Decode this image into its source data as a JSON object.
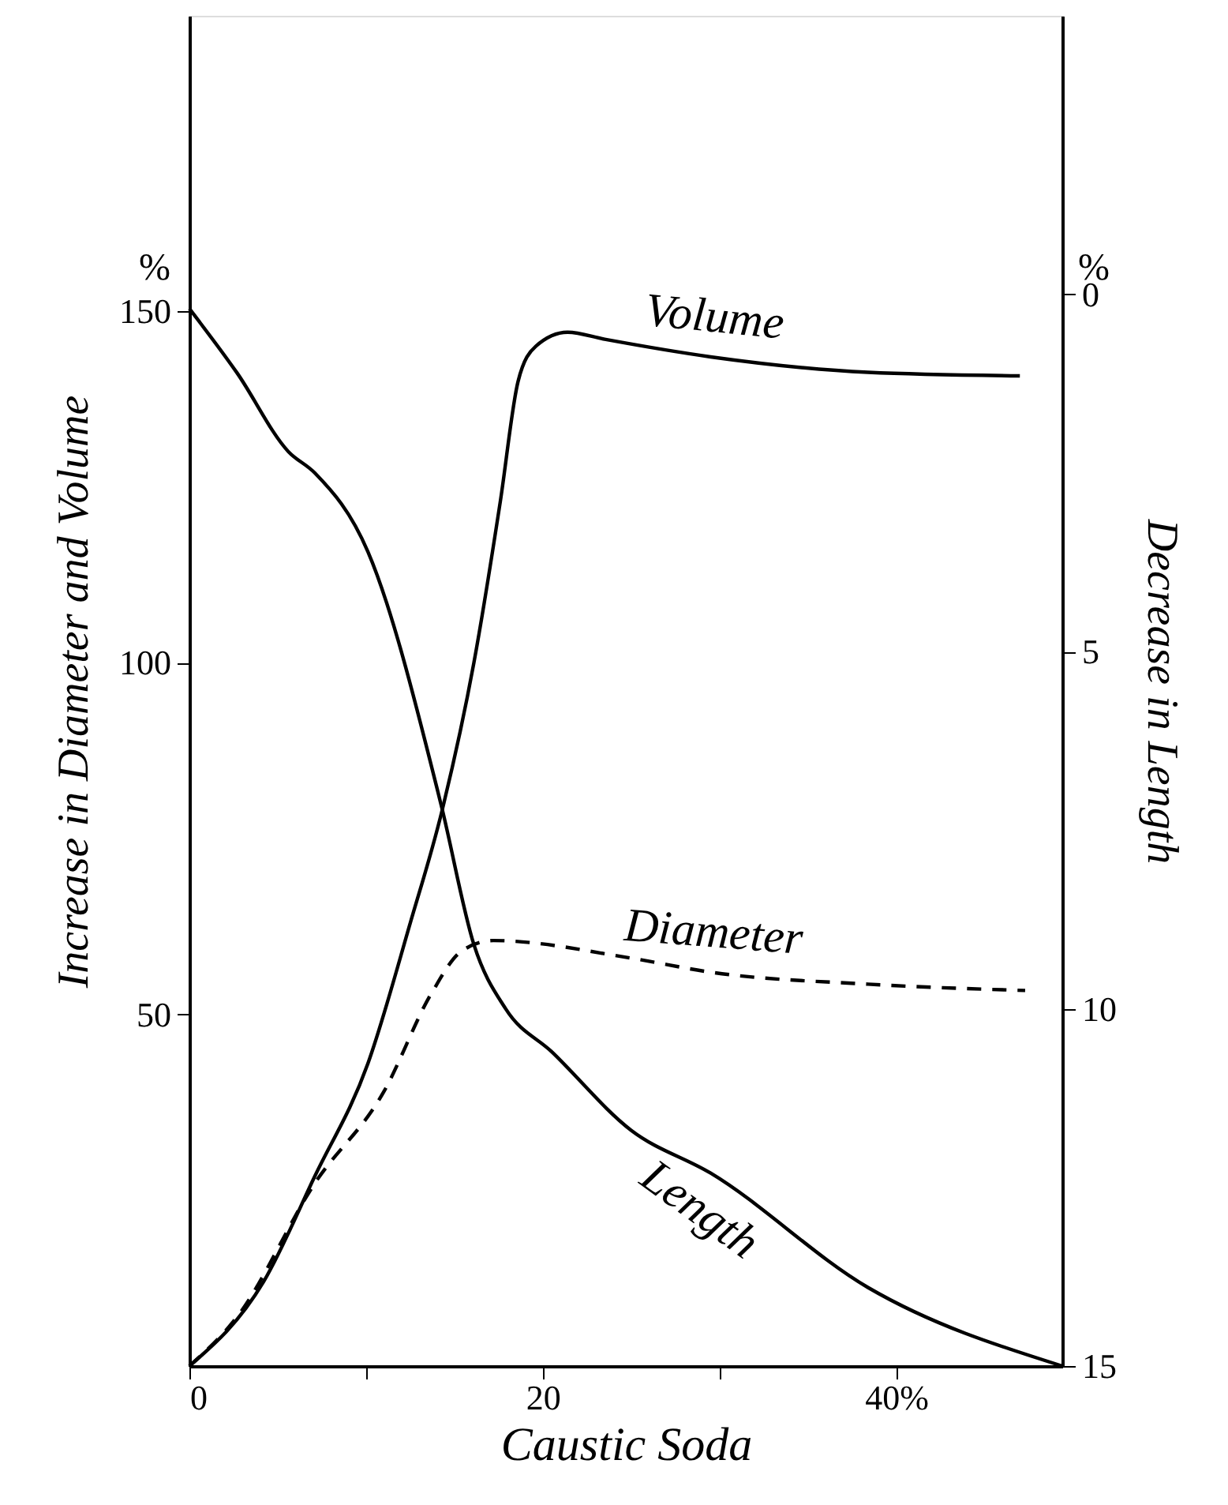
{
  "chart_data": {
    "type": "line",
    "xlabel": "Caustic Soda",
    "ylabel": "Increase in Diameter and Volume",
    "y2label": "Decrease in Length",
    "xlim": [
      0,
      49.4
    ],
    "xticks": [
      0,
      {
        "value": 10,
        "label": null
      },
      20,
      {
        "value": 30,
        "label": null
      },
      {
        "value": 40,
        "label": "40%"
      }
    ],
    "ylim": [
      0,
      192
    ],
    "yticks": [
      50,
      100,
      150
    ],
    "y2lim": [
      15,
      -3.9
    ],
    "y2ticks": [
      0,
      5,
      10,
      15
    ],
    "annotations": [
      "%",
      "%"
    ],
    "series": [
      {
        "name": "Volume",
        "color": "#000000",
        "line_style": "solid",
        "x": [
          0,
          4.2,
          7.1,
          10.1,
          12.5,
          14.3,
          16.1,
          17.6,
          18.6,
          19.6,
          21.4,
          23.5,
          29.5,
          38.4,
          47
        ],
        "values": [
          0,
          12,
          27,
          43,
          63,
          79,
          100,
          123,
          140,
          145,
          147,
          146,
          143.5,
          141.3,
          140.8
        ]
      },
      {
        "name": "Diameter",
        "color": "#000000",
        "line_style": "dashed",
        "x": [
          0,
          2.7,
          7.1,
          11,
          13.7,
          15.4,
          17.2,
          25,
          29.5,
          38.4,
          47.3
        ],
        "values": [
          0,
          7,
          26,
          39,
          53,
          59,
          60.5,
          58,
          56,
          54.3,
          53.4
        ]
      },
      {
        "name": "Length",
        "color": "#000000",
        "line_style": "solid",
        "axis": "y2",
        "x": [
          0,
          2.7,
          5.6,
          7.1,
          10.1,
          14,
          14.3,
          16.1,
          17.9,
          20.5,
          25,
          29.5,
          38.4,
          49.4
        ],
        "values": [
          0.2,
          1.1,
          2.2,
          2.5,
          3.6,
          6.9,
          7.2,
          9.1,
          10,
          10.6,
          11.7,
          12.3,
          13.9,
          15
        ]
      }
    ]
  }
}
